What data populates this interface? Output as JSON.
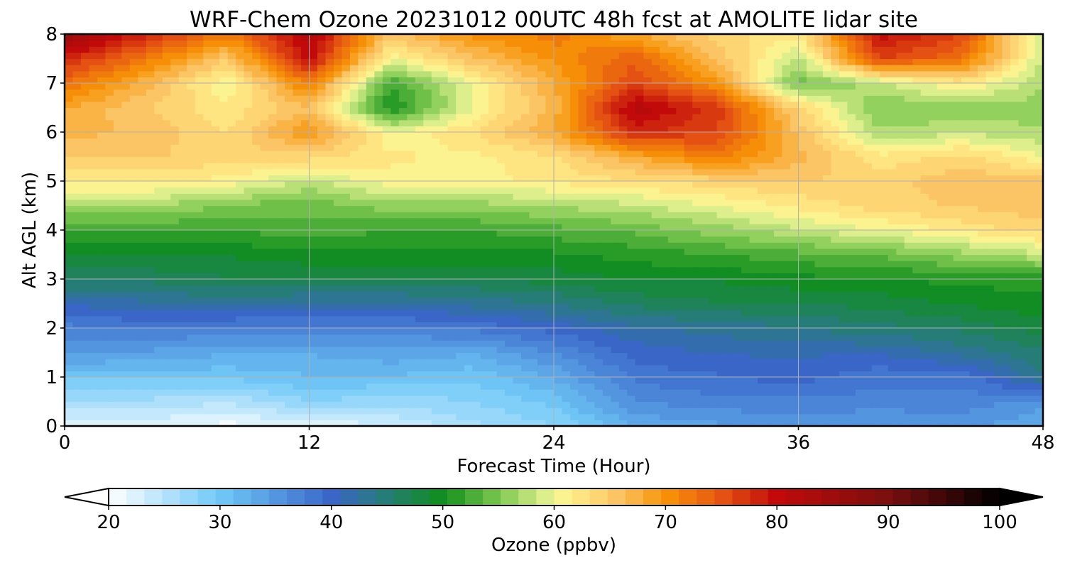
{
  "chart_data": {
    "type": "heatmap",
    "title": "WRF-Chem Ozone  20231012 00UTC 48h fcst at AMOLITE lidar site",
    "xlabel": "Forecast Time (Hour)",
    "ylabel": "Alt AGL (km)",
    "xlim": [
      0,
      48
    ],
    "ylim": [
      0,
      8
    ],
    "x_ticks": [
      "0",
      "12",
      "24",
      "36",
      "48"
    ],
    "y_ticks": [
      "0",
      "1",
      "2",
      "3",
      "4",
      "5",
      "6",
      "7",
      "8"
    ],
    "grid": true,
    "x": [
      0,
      4,
      8,
      12,
      16,
      20,
      24,
      28,
      32,
      36,
      40,
      44,
      48
    ],
    "y": [
      0,
      0.5,
      1,
      1.5,
      2,
      2.5,
      3,
      3.5,
      4,
      4.5,
      5,
      5.5,
      6,
      6.5,
      7,
      7.5,
      8
    ],
    "z": [
      [
        22,
        22,
        21,
        22,
        23,
        26,
        28,
        33,
        34,
        35,
        34,
        35,
        33
      ],
      [
        26,
        26,
        25,
        28,
        27,
        28,
        30,
        36,
        37,
        37,
        37,
        37,
        35
      ],
      [
        30,
        30,
        30,
        31,
        31,
        30,
        33,
        38,
        39,
        40,
        38,
        38,
        44
      ],
      [
        35,
        34,
        33,
        33,
        34,
        33,
        36,
        40,
        41,
        41,
        41,
        43,
        45
      ],
      [
        37,
        38,
        37,
        37,
        37,
        38,
        40,
        42,
        43,
        44,
        45,
        46,
        48
      ],
      [
        41,
        42,
        43,
        42,
        42,
        43,
        44,
        46,
        47,
        47,
        48,
        49,
        50
      ],
      [
        46,
        46,
        47,
        47,
        47,
        47,
        48,
        49,
        49,
        50,
        50,
        51,
        51
      ],
      [
        49,
        49,
        49,
        50,
        50,
        50,
        50,
        51,
        52,
        53,
        54,
        56,
        58
      ],
      [
        52,
        52,
        52,
        53,
        52,
        52,
        53,
        54,
        56,
        58,
        60,
        62,
        64
      ],
      [
        57,
        57,
        55,
        54,
        56,
        56,
        57,
        58,
        60,
        62,
        64,
        65,
        66
      ],
      [
        62,
        62,
        61,
        58,
        61,
        61,
        62,
        63,
        64,
        65,
        64,
        66,
        66
      ],
      [
        65,
        65,
        64,
        64,
        62,
        61,
        63,
        68,
        72,
        67,
        62,
        64,
        60
      ],
      [
        67,
        66,
        63,
        70,
        60,
        63,
        68,
        78,
        76,
        66,
        57,
        58,
        57
      ],
      [
        68,
        65,
        62,
        66,
        50,
        60,
        67,
        82,
        77,
        64,
        55,
        56,
        56
      ],
      [
        73,
        67,
        60,
        72,
        52,
        60,
        68,
        76,
        70,
        54,
        58,
        62,
        57
      ],
      [
        78,
        72,
        65,
        80,
        60,
        66,
        70,
        74,
        66,
        58,
        76,
        73,
        58
      ],
      [
        86,
        78,
        72,
        82,
        66,
        70,
        72,
        68,
        64,
        62,
        80,
        76,
        58
      ]
    ],
    "colorbar": {
      "label": "Ozone  (ppbv)",
      "min": 20,
      "max": 100,
      "ticks": [
        "20",
        "30",
        "40",
        "50",
        "60",
        "70",
        "80",
        "90",
        "100"
      ],
      "extend": "both"
    },
    "colormap": [
      [
        20,
        "#ffffff"
      ],
      [
        30,
        "#6fc8f7"
      ],
      [
        40,
        "#3a66c8"
      ],
      [
        45,
        "#257d73"
      ],
      [
        50,
        "#0f8e1c"
      ],
      [
        55,
        "#7cc74f"
      ],
      [
        59,
        "#d8ee8c"
      ],
      [
        61,
        "#fff48f"
      ],
      [
        66,
        "#fbc060"
      ],
      [
        70,
        "#f79406"
      ],
      [
        75,
        "#e55412"
      ],
      [
        80,
        "#c20a0a"
      ],
      [
        90,
        "#7a0f0f"
      ],
      [
        100,
        "#000000"
      ]
    ]
  }
}
